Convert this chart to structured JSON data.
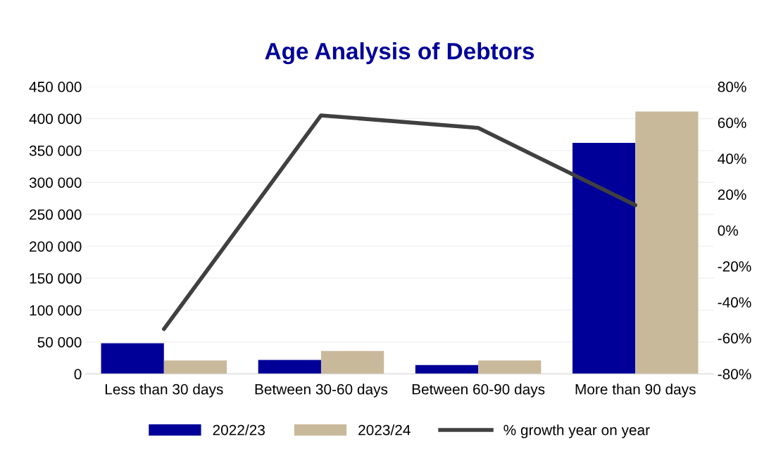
{
  "chart_data": {
    "type": "bar",
    "title": "Age Analysis of Debtors",
    "categories": [
      "Less than 30 days",
      "Between 30-60 days",
      "Between 60-90 days",
      "More than 90 days"
    ],
    "series": [
      {
        "name": "2022/23",
        "color": "#000099",
        "values": [
          48000,
          22000,
          14000,
          362000
        ]
      },
      {
        "name": "2023/24",
        "color": "#c9b99b",
        "values": [
          21000,
          36000,
          21000,
          411000
        ]
      },
      {
        "name": "% growth year on year",
        "type": "line",
        "axis": "y2",
        "color": "#404040",
        "values": [
          -55,
          64,
          57,
          14
        ]
      }
    ],
    "ylim": [
      0,
      450000
    ],
    "yticks": [
      0,
      {
        "value": 50000,
        "label": "50 000"
      },
      {
        "value": 100000,
        "label": "100 000"
      },
      {
        "value": 150000,
        "label": "150 000"
      },
      {
        "value": 200000,
        "label": "200 000"
      },
      {
        "value": 250000,
        "label": "250 000"
      },
      {
        "value": 300000,
        "label": "300 000"
      },
      {
        "value": 350000,
        "label": "350 000"
      },
      {
        "value": 400000,
        "label": "400 000"
      },
      {
        "value": 450000,
        "label": "450 000"
      }
    ],
    "y2lim": [
      -80,
      80
    ],
    "y2ticks": [
      {
        "value": -80,
        "label": "-80%"
      },
      {
        "value": -60,
        "label": "-60%"
      },
      {
        "value": -40,
        "label": "-40%"
      },
      {
        "value": -20,
        "label": "-20%"
      },
      {
        "value": 0,
        "label": "0%"
      },
      {
        "value": 20,
        "label": "20%"
      },
      {
        "value": 40,
        "label": "40%"
      },
      {
        "value": 60,
        "label": "60%"
      },
      {
        "value": 80,
        "label": "80%"
      }
    ],
    "grid": "y",
    "legend": "bottom",
    "marker": "none",
    "line_style": "solid"
  }
}
